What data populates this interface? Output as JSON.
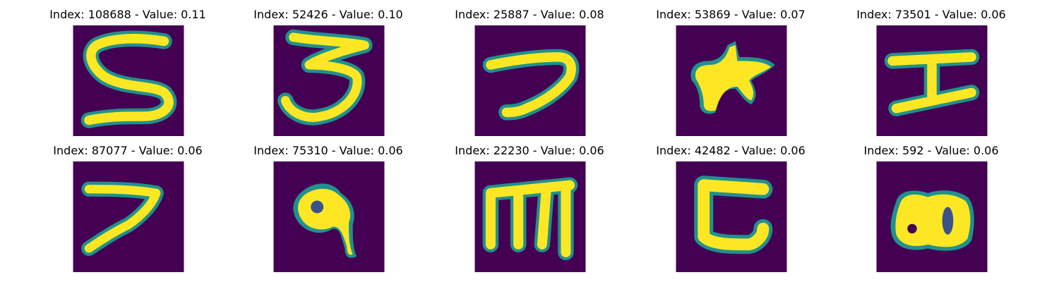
{
  "figure": {
    "rows": 2,
    "cols": 5,
    "colormap": "viridis",
    "colors": {
      "background": "#440154",
      "mid": "#21918c",
      "foreground": "#fde725"
    },
    "panels": [
      {
        "index": "108688",
        "value": "0.11",
        "glyph": "5",
        "title": "Index: 108688 - Value: 0.11"
      },
      {
        "index": "52426",
        "value": "0.10",
        "glyph": "3",
        "title": "Index: 52426 - Value: 0.10"
      },
      {
        "index": "25887",
        "value": "0.08",
        "glyph": "hook",
        "title": "Index: 25887 - Value: 0.08"
      },
      {
        "index": "53869",
        "value": "0.07",
        "glyph": "star-blob",
        "title": "Index: 53869 - Value: 0.07"
      },
      {
        "index": "73501",
        "value": "0.06",
        "glyph": "I",
        "title": "Index: 73501 - Value: 0.06"
      },
      {
        "index": "87077",
        "value": "0.06",
        "glyph": "7",
        "title": "Index: 87077 - Value: 0.06"
      },
      {
        "index": "75310",
        "value": "0.06",
        "glyph": "loop-hook",
        "title": "Index: 75310 - Value: 0.06"
      },
      {
        "index": "22230",
        "value": "0.06",
        "glyph": "m",
        "title": "Index: 22230 - Value: 0.06"
      },
      {
        "index": "42482",
        "value": "0.06",
        "glyph": "C-bracket",
        "title": "Index: 42482 - Value: 0.06"
      },
      {
        "index": "592",
        "value": "0.06",
        "glyph": "blob-loops",
        "title": "Index: 592 - Value: 0.06"
      }
    ]
  }
}
